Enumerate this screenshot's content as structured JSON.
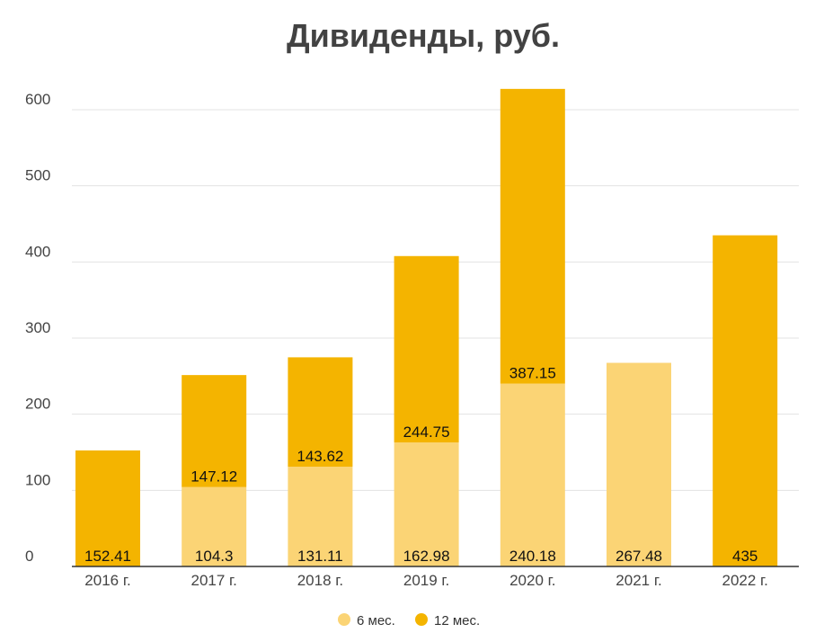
{
  "chart_data": {
    "type": "bar",
    "stacked": true,
    "title": "Дивиденды, руб.",
    "xlabel": "",
    "ylabel": "",
    "categories": [
      "2016 г.",
      "2017 г.",
      "2018 г.",
      "2019 г.",
      "2020 г.",
      "2021 г.",
      "2022 г."
    ],
    "series": [
      {
        "name": "6 мес.",
        "color": "#FBD475",
        "values": [
          0,
          104.3,
          131.11,
          162.98,
          240.18,
          267.48,
          0
        ]
      },
      {
        "name": "12 мес.",
        "color": "#F4B400",
        "values": [
          152.41,
          147.12,
          143.62,
          244.75,
          387.15,
          0,
          435
        ]
      }
    ],
    "data_labels": [
      {
        "category": "2016 г.",
        "first": "152.41",
        "second": ""
      },
      {
        "category": "2017 г.",
        "first": "104.3",
        "second": "147.12"
      },
      {
        "category": "2018 г.",
        "first": "131.11",
        "second": "143.62"
      },
      {
        "category": "2019 г.",
        "first": "162.98",
        "second": "244.75"
      },
      {
        "category": "2020 г.",
        "first": "240.18",
        "second": "387.15"
      },
      {
        "category": "2021 г.",
        "first": "267.48",
        "second": ""
      },
      {
        "category": "2022 г.",
        "first": "435",
        "second": ""
      }
    ],
    "y_ticks": [
      0,
      100,
      200,
      300,
      400,
      500,
      600
    ],
    "ylim": [
      0,
      630
    ],
    "grid": true,
    "legend_position": "bottom"
  }
}
